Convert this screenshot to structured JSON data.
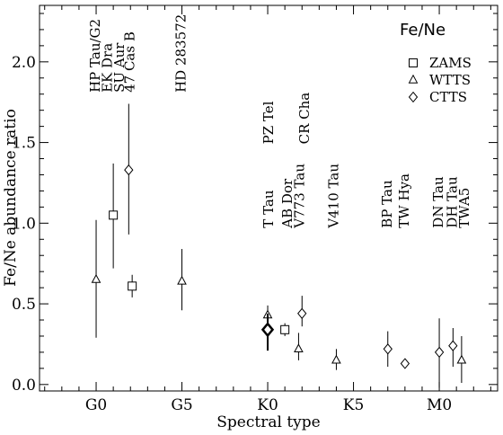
{
  "chart_data": {
    "type": "scatter",
    "xlabel": "Spectral type",
    "ylabel": "Fe/Ne abundance ratio",
    "legend": {
      "title": "Fe/Ne",
      "position": "top-right",
      "entries": [
        {
          "label": "ZAMS",
          "marker": "square"
        },
        {
          "label": "WTTS",
          "marker": "triangle"
        },
        {
          "label": "CTTS",
          "marker": "diamond"
        }
      ]
    },
    "xlim": [
      -3.3,
      23.4
    ],
    "ylim": [
      -0.04,
      2.35
    ],
    "x_ticks": [
      {
        "value": 0,
        "label": "G0"
      },
      {
        "value": 5,
        "label": "G5"
      },
      {
        "value": 10,
        "label": "K0"
      },
      {
        "value": 15,
        "label": "K5"
      },
      {
        "value": 20,
        "label": "M0"
      }
    ],
    "x_minor_step": 1,
    "y_ticks": [
      {
        "value": 0.0,
        "label": "0.0"
      },
      {
        "value": 0.5,
        "label": "0.5"
      },
      {
        "value": 1.0,
        "label": "1.0"
      },
      {
        "value": 1.5,
        "label": "1.5"
      },
      {
        "value": 2.0,
        "label": "2.0"
      }
    ],
    "y_minor_step": 0.1,
    "grid": false,
    "points": [
      {
        "x": 0.0,
        "y": 0.65,
        "ylow": 0.29,
        "yhigh": 1.02,
        "marker": "triangle",
        "bold": false
      },
      {
        "x": 1.0,
        "y": 1.05,
        "ylow": 0.72,
        "yhigh": 1.37,
        "marker": "square",
        "bold": false
      },
      {
        "x": 1.9,
        "y": 1.33,
        "ylow": 0.93,
        "yhigh": 1.74,
        "marker": "diamond",
        "bold": false
      },
      {
        "x": 2.1,
        "y": 0.61,
        "ylow": 0.54,
        "yhigh": 0.68,
        "marker": "square",
        "bold": false
      },
      {
        "x": 5.0,
        "y": 0.64,
        "ylow": 0.46,
        "yhigh": 0.84,
        "marker": "triangle",
        "bold": false
      },
      {
        "x": 10.0,
        "y": 0.43,
        "ylow": 0.37,
        "yhigh": 0.49,
        "marker": "triangle",
        "bold": false
      },
      {
        "x": 10.0,
        "y": 0.34,
        "ylow": 0.21,
        "yhigh": 0.44,
        "marker": "diamond",
        "bold": true
      },
      {
        "x": 11.0,
        "y": 0.34,
        "ylow": 0.3,
        "yhigh": 0.38,
        "marker": "square",
        "bold": false
      },
      {
        "x": 11.8,
        "y": 0.22,
        "ylow": 0.15,
        "yhigh": 0.32,
        "marker": "triangle",
        "bold": false
      },
      {
        "x": 12.0,
        "y": 0.44,
        "ylow": 0.36,
        "yhigh": 0.55,
        "marker": "diamond",
        "bold": false
      },
      {
        "x": 14.0,
        "y": 0.15,
        "ylow": 0.09,
        "yhigh": 0.22,
        "marker": "triangle",
        "bold": false
      },
      {
        "x": 17.0,
        "y": 0.22,
        "ylow": 0.11,
        "yhigh": 0.33,
        "marker": "diamond",
        "bold": false
      },
      {
        "x": 18.0,
        "y": 0.13,
        "ylow": 0.12,
        "yhigh": 0.14,
        "marker": "diamond",
        "bold": false
      },
      {
        "x": 20.0,
        "y": 0.2,
        "ylow": -0.02,
        "yhigh": 0.41,
        "marker": "diamond",
        "bold": false
      },
      {
        "x": 20.8,
        "y": 0.24,
        "ylow": 0.11,
        "yhigh": 0.35,
        "marker": "diamond",
        "bold": false
      },
      {
        "x": 21.3,
        "y": 0.15,
        "ylow": 0.01,
        "yhigh": 0.3,
        "marker": "triangle",
        "bold": false
      }
    ],
    "annotations": [
      {
        "text": "HP Tau/G2",
        "x": -0.1,
        "y": 1.81
      },
      {
        "text": "EK Dra",
        "x": 0.6,
        "y": 1.81
      },
      {
        "text": "SU Aur",
        "x": 1.3,
        "y": 1.81
      },
      {
        "text": "47 Cas B",
        "x": 1.9,
        "y": 1.81
      },
      {
        "text": "HD 283572",
        "x": 4.9,
        "y": 1.81
      },
      {
        "text": "PZ Tel",
        "x": 10.0,
        "y": 1.49
      },
      {
        "text": "CR Cha",
        "x": 12.1,
        "y": 1.49
      },
      {
        "text": "T Tau",
        "x": 10.0,
        "y": 0.97
      },
      {
        "text": "AB Dor",
        "x": 11.1,
        "y": 0.97
      },
      {
        "text": "V773 Tau",
        "x": 11.8,
        "y": 0.97
      },
      {
        "text": "V410 Tau",
        "x": 13.8,
        "y": 0.97
      },
      {
        "text": "BP Tau",
        "x": 16.9,
        "y": 0.97
      },
      {
        "text": "TW Hya",
        "x": 17.9,
        "y": 0.97
      },
      {
        "text": "DN Tau",
        "x": 19.9,
        "y": 0.97
      },
      {
        "text": "DH Tau",
        "x": 20.7,
        "y": 0.97
      },
      {
        "text": "TWA5",
        "x": 21.4,
        "y": 0.97
      }
    ]
  }
}
